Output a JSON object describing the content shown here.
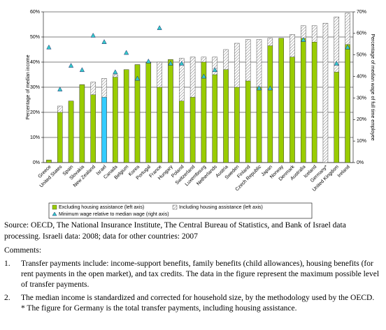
{
  "chart_data": {
    "type": "bar",
    "categories": [
      "Greece",
      "United States",
      "Spain",
      "Slovakia",
      "New Zealand",
      "Israel",
      "Canada",
      "Belgium",
      "Korea",
      "Portugal",
      "France",
      "Hungary",
      "Poland",
      "Switzerland",
      "Luxembourg",
      "Netherlands",
      "Austria",
      "Sweden",
      "Finland",
      "Czech Republic",
      "Japan",
      "Norway",
      "Denmark",
      "Australia",
      "Iceland",
      "Germany*",
      "United Kingdom",
      "Ireland"
    ],
    "series": [
      {
        "name": "Including housing assistance (left axis)",
        "style": "hatched",
        "color": "#000000",
        "values": [
          1,
          22.5,
          24.5,
          31,
          32,
          33.5,
          35,
          37,
          39,
          40,
          40,
          41,
          41.5,
          42,
          42,
          42,
          45,
          47.5,
          49,
          49,
          49.5,
          49.5,
          51,
          54.5,
          54.5,
          55.5,
          58,
          59.5
        ]
      },
      {
        "name": "Excluding housing assistance (left axis)",
        "style": "solid",
        "color": "#99cc00",
        "highlight": {
          "category": "Israel",
          "color": "#33ccff"
        },
        "values": [
          1,
          20,
          24.5,
          31,
          27,
          26,
          34,
          37,
          39,
          40,
          30,
          41,
          24.5,
          26,
          40,
          35,
          37,
          30,
          32.5,
          30,
          46.5,
          49.5,
          42,
          49.5,
          48,
          null,
          36,
          47
        ]
      },
      {
        "name": "Minimum wage relative to median wage (right axis)",
        "style": "marker",
        "color": "#33cccc",
        "axis": "y2",
        "values": [
          53.5,
          34,
          45,
          43,
          59,
          56,
          42,
          51,
          39,
          47,
          62.5,
          46,
          46,
          null,
          40,
          43,
          null,
          null,
          null,
          34.5,
          34.5,
          null,
          null,
          57,
          null,
          null,
          46,
          53.5
        ]
      }
    ],
    "ylabel": "Percentage of median income",
    "y2label": "Percentage of median wage of full time employee",
    "ylim": [
      0,
      60
    ],
    "yticks": [
      {
        "value": 0,
        "label": "0%"
      },
      {
        "value": 10,
        "label": "10%"
      },
      {
        "value": 20,
        "label": "20%"
      },
      {
        "value": 30,
        "label": "30%"
      },
      {
        "value": 40,
        "label": "40%"
      },
      {
        "value": 50,
        "label": "50%"
      },
      {
        "value": 60,
        "label": "60%"
      }
    ],
    "y2lim": [
      0,
      70
    ],
    "y2ticks": [
      {
        "value": 0,
        "label": "0%"
      },
      {
        "value": 10,
        "label": "10%"
      },
      {
        "value": 20,
        "label": "20%"
      },
      {
        "value": 30,
        "label": "30%"
      },
      {
        "value": 40,
        "label": "40%"
      },
      {
        "value": 50,
        "label": "50%"
      },
      {
        "value": 60,
        "label": "60%"
      },
      {
        "value": 70,
        "label": "70%"
      }
    ],
    "grid": true
  },
  "notes": {
    "source": "Source: OECD, The National Insurance Institute, The Central Bureau of Statistics, and Bank of Israel data processing. Israeli data: 2008; data for other countries: 2007",
    "comments_title": "Comments:",
    "comments": [
      {
        "number": "1.",
        "text": "Transfer payments include: income-support benefits, family benefits (child allowances), housing benefits (for rent payments in the open market), and tax credits. The data in the figure represent the maximum possible level of transfer payments."
      },
      {
        "number": "2.",
        "text": "The median income is standardized and corrected for household size, by the methodology used by the OECD."
      }
    ],
    "footnote": "* The figure for Germany is the total transfer payments, including housing assistance."
  }
}
